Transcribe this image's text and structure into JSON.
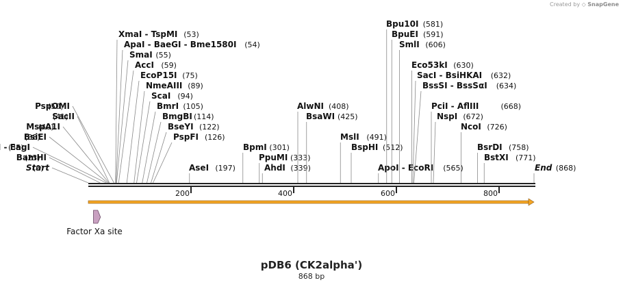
{
  "credit": {
    "prefix": "Created by",
    "brand": "SnapGene"
  },
  "plasmid": {
    "name": "pDB6 (CK2alpha')",
    "length_label": "868 bp",
    "length": 868
  },
  "colors": {
    "backbone": "#222222",
    "orf_fill": "#f5a623",
    "orf_stroke": "#8a5a1a",
    "feature_fill": "#c9a1c1",
    "leader": "#888888"
  },
  "features": [
    {
      "label": "Factor Xa site",
      "start": 10,
      "end": 21
    }
  ],
  "ticks": [
    {
      "pos": 200,
      "label": "200"
    },
    {
      "pos": 400,
      "label": "400"
    },
    {
      "pos": 600,
      "label": "600"
    },
    {
      "pos": 800,
      "label": "800"
    }
  ],
  "labels": [
    {
      "name": "Start",
      "pos": 0,
      "num": "(0)",
      "side": "left",
      "special": true
    },
    {
      "name": "BamHI",
      "pos": 23,
      "num": "(23)",
      "side": "left"
    },
    {
      "name": "EaeI  -  EagI",
      "pos": 35,
      "num": "(35)",
      "side": "left"
    },
    {
      "name": "BsiEI",
      "pos": 38,
      "num": "(38)",
      "side": "left"
    },
    {
      "name": "MspA1I",
      "pos": 40,
      "num": "(40)",
      "side": "left"
    },
    {
      "name": "SacII",
      "pos": 41,
      "num": "(41)",
      "side": "left"
    },
    {
      "name": "PspOMI",
      "pos": 50,
      "num": "(50)",
      "side": "left"
    },
    {
      "name": "XmaI  -  TspMI",
      "pos": 53,
      "num": "(53)",
      "side": "right"
    },
    {
      "name": "ApaI  -  BaeGI  -  Bme1580I",
      "pos": 54,
      "num": "(54)",
      "side": "right"
    },
    {
      "name": "SmaI",
      "pos": 55,
      "num": "(55)",
      "side": "right"
    },
    {
      "name": "AccI",
      "pos": 59,
      "num": "(59)",
      "side": "right"
    },
    {
      "name": "EcoP15I",
      "pos": 75,
      "num": "(75)",
      "side": "right"
    },
    {
      "name": "NmeAIII",
      "pos": 89,
      "num": "(89)",
      "side": "right"
    },
    {
      "name": "ScaI",
      "pos": 94,
      "num": "(94)",
      "side": "right"
    },
    {
      "name": "BmrI",
      "pos": 105,
      "num": "(105)",
      "side": "right"
    },
    {
      "name": "BmgBI",
      "pos": 114,
      "num": "(114)",
      "side": "right"
    },
    {
      "name": "BseYI",
      "pos": 122,
      "num": "(122)",
      "side": "right"
    },
    {
      "name": "PspFI",
      "pos": 126,
      "num": "(126)",
      "side": "right"
    },
    {
      "name": "AseI",
      "pos": 197,
      "num": "(197)",
      "side": "right"
    },
    {
      "name": "BpmI",
      "pos": 301,
      "num": "(301)",
      "side": "right"
    },
    {
      "name": "PpuMI",
      "pos": 333,
      "num": "(333)",
      "side": "right"
    },
    {
      "name": "AhdI",
      "pos": 339,
      "num": "(339)",
      "side": "right"
    },
    {
      "name": "AlwNI",
      "pos": 408,
      "num": "(408)",
      "side": "right"
    },
    {
      "name": "BsaWI",
      "pos": 425,
      "num": "(425)",
      "side": "right"
    },
    {
      "name": "MslI",
      "pos": 491,
      "num": "(491)",
      "side": "right"
    },
    {
      "name": "BspHI",
      "pos": 512,
      "num": "(512)",
      "side": "right"
    },
    {
      "name": "ApoI  -  EcoRI",
      "pos": 565,
      "num": "(565)",
      "side": "right"
    },
    {
      "name": "Bpu10I",
      "pos": 581,
      "num": "(581)",
      "side": "right"
    },
    {
      "name": "BpuEI",
      "pos": 591,
      "num": "(591)",
      "side": "right"
    },
    {
      "name": "SmlI",
      "pos": 606,
      "num": "(606)",
      "side": "right"
    },
    {
      "name": "Eco53kI",
      "pos": 630,
      "num": "(630)",
      "side": "right"
    },
    {
      "name": "SacI  -  BsiHKAI",
      "pos": 632,
      "num": "(632)",
      "side": "right"
    },
    {
      "name": "BssSI  -  BssSαI",
      "pos": 634,
      "num": "(634)",
      "side": "right"
    },
    {
      "name": "PciI  -  AflIII",
      "pos": 668,
      "num": "(668)",
      "side": "right"
    },
    {
      "name": "NspI",
      "pos": 672,
      "num": "(672)",
      "side": "right"
    },
    {
      "name": "NcoI",
      "pos": 726,
      "num": "(726)",
      "side": "right"
    },
    {
      "name": "BsrDI",
      "pos": 758,
      "num": "(758)",
      "side": "right"
    },
    {
      "name": "BstXI",
      "pos": 771,
      "num": "(771)",
      "side": "right"
    },
    {
      "name": "End",
      "pos": 868,
      "num": "(868)",
      "side": "right",
      "special": true
    }
  ]
}
